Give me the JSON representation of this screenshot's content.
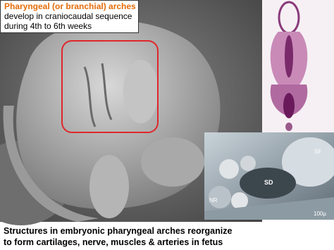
{
  "title_box": {
    "title": "Pharyngeal (or branchial) arches",
    "lines": [
      "develop in craniocaudal sequence",
      "during 4th to 6th weeks"
    ]
  },
  "inset_labels": [
    "SF",
    "SD",
    "NR",
    "100µ"
  ],
  "caption": [
    "Structures in embryonic pharyngeal arches reorganize",
    "to form cartilages, nerve, muscles & arteries in fetus"
  ]
}
